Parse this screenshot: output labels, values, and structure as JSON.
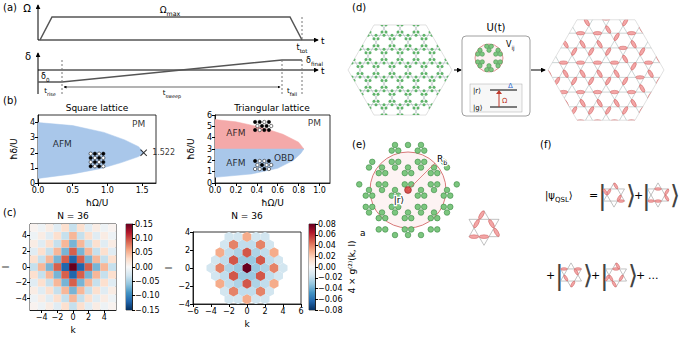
{
  "chart_data": [
    {
      "type": "phase",
      "title": "Square lattice",
      "x_label": "ħΩ/U",
      "y_label": "ħδ/U",
      "xlim": [
        0,
        1.7
      ],
      "ylim": [
        0,
        4.5
      ],
      "xticks": [
        {
          "value": 0,
          "label": "0.0"
        },
        0.5,
        {
          "value": 1,
          "label": "1.0"
        },
        1.5
      ],
      "yticks": [
        0,
        1,
        2,
        3,
        4
      ],
      "grid": false,
      "regions": [
        {
          "color": "#a9c7ea",
          "points": [
            [
              0,
              0.3
            ],
            [
              0.5,
              0.6
            ],
            [
              0.9,
              0.95
            ],
            [
              1.2,
              1.35
            ],
            [
              1.45,
              1.75
            ],
            [
              1.522,
              2.0
            ],
            [
              1.45,
              2.4
            ],
            [
              1.25,
              2.85
            ],
            [
              0.95,
              3.35
            ],
            [
              0.5,
              3.8
            ],
            [
              0,
              4.0
            ]
          ]
        }
      ],
      "labels": [
        "AFM",
        "PM"
      ],
      "series": [
        {
          "type": "scatter",
          "marker": "cross",
          "color": "#000000",
          "values": [
            [
              1.522,
              2.0
            ]
          ],
          "data_labels": true
        }
      ]
    },
    {
      "type": "phase",
      "title": "Triangular lattice",
      "x_label": "ħΩ/U",
      "y_label": "ħδ/U",
      "xlim": [
        0,
        1.1
      ],
      "ylim": [
        0,
        6
      ],
      "xticks": [
        {
          "value": 0,
          "label": "0.0"
        },
        0.2,
        0.4,
        0.6,
        0.8,
        {
          "value": 1,
          "label": "1.0"
        }
      ],
      "yticks": [
        0,
        1,
        2,
        3,
        4,
        5,
        6
      ],
      "grid": false,
      "regions": [
        {
          "color": "#f4a9a9",
          "points": [
            [
              0,
              3
            ],
            [
              0.85,
              3
            ],
            [
              0.8,
              3.6
            ],
            [
              0.65,
              4.3
            ],
            [
              0.45,
              4.9
            ],
            [
              0.2,
              5.4
            ],
            [
              0,
              5.6
            ]
          ]
        },
        {
          "color": "#a9c7ea",
          "points": [
            [
              0,
              0.5
            ],
            [
              0.35,
              0.8
            ],
            [
              0.6,
              1.3
            ],
            [
              0.75,
              2
            ],
            [
              0.82,
              2.6
            ],
            [
              0.85,
              3
            ],
            [
              0,
              3
            ]
          ]
        }
      ],
      "labels": [
        "AFM",
        "AFM",
        "PM",
        "OBD"
      ]
    },
    {
      "type": "heatmap",
      "title": "N = 36",
      "x_label": "k",
      "y_label": "l",
      "xlim": [
        -5.5,
        5.5
      ],
      "ylim": [
        -5.5,
        5.5
      ],
      "xticks": [
        {
          "value": -4,
          "label": "−4"
        },
        {
          "value": -2,
          "label": "−2"
        },
        0,
        2,
        4
      ],
      "yticks": [
        {
          "value": -4,
          "label": "−4"
        },
        {
          "value": -2,
          "label": "−2"
        },
        0,
        2,
        4
      ],
      "grid": false,
      "x": [
        -5,
        -4,
        -3,
        -2,
        -1,
        0,
        1,
        2,
        3,
        4,
        5
      ],
      "y": [
        -5,
        -4,
        -3,
        -2,
        -1,
        0,
        1,
        2,
        3,
        4,
        5
      ],
      "cells": [
        [
          0.005,
          -0.008,
          0.012,
          -0.018,
          0.025,
          -0.035,
          0.025,
          -0.018,
          0.012,
          -0.008,
          0.005
        ],
        [
          -0.008,
          0.012,
          -0.018,
          0.025,
          -0.035,
          0.05,
          -0.035,
          0.025,
          -0.018,
          0.012,
          -0.008
        ],
        [
          0.012,
          -0.018,
          0.025,
          -0.035,
          0.05,
          -0.07,
          0.05,
          -0.035,
          0.025,
          -0.018,
          0.012
        ],
        [
          -0.018,
          0.025,
          -0.035,
          0.05,
          -0.07,
          0.09,
          -0.07,
          0.05,
          -0.035,
          0.025,
          -0.018
        ],
        [
          0.025,
          -0.035,
          0.05,
          -0.07,
          0.09,
          -0.12,
          0.09,
          -0.07,
          0.05,
          -0.035,
          0.025
        ],
        [
          -0.035,
          0.05,
          -0.07,
          0.09,
          -0.12,
          0.15,
          -0.12,
          0.09,
          -0.07,
          0.05,
          -0.035
        ],
        [
          0.025,
          -0.035,
          0.05,
          -0.07,
          0.09,
          -0.12,
          0.09,
          -0.07,
          0.05,
          -0.035,
          0.025
        ],
        [
          -0.018,
          0.025,
          -0.035,
          0.05,
          -0.07,
          0.09,
          -0.07,
          0.05,
          -0.035,
          0.025,
          -0.018
        ],
        [
          0.012,
          -0.018,
          0.025,
          -0.035,
          0.05,
          -0.07,
          0.05,
          -0.035,
          0.025,
          -0.018,
          0.012
        ],
        [
          -0.008,
          0.012,
          -0.018,
          0.025,
          -0.035,
          0.05,
          -0.035,
          0.025,
          -0.018,
          0.012,
          -0.008
        ],
        [
          0.005,
          -0.008,
          0.012,
          -0.018,
          0.025,
          -0.035,
          0.025,
          -0.018,
          0.012,
          -0.008,
          0.005
        ]
      ],
      "colorbar": {
        "range": [
          -0.15,
          0.15
        ],
        "ticks": [
          {
            "value": -0.15,
            "label": "−0.15"
          },
          {
            "value": -0.1,
            "label": "−0.10"
          },
          {
            "value": -0.05,
            "label": "−0.05"
          },
          {
            "value": 0,
            "label": "0.00"
          },
          0.05,
          {
            "value": 0.1,
            "label": "0.10"
          },
          0.15
        ]
      }
    },
    {
      "type": "hexbin",
      "title": "N = 36",
      "x_label": "k",
      "y_label": "l",
      "xlim": [
        -6,
        6
      ],
      "ylim": [
        -4,
        4
      ],
      "xticks": [
        {
          "value": -6,
          "label": "−6"
        },
        {
          "value": -4,
          "label": "−4"
        },
        {
          "value": -2,
          "label": "−2"
        },
        0,
        2,
        4,
        6
      ],
      "yticks": [
        {
          "value": -4,
          "label": "−4"
        },
        {
          "value": -2,
          "label": "−2"
        },
        0,
        2,
        4
      ],
      "grid": false,
      "points": [
        [
          -2,
          -3.46,
          -0.015
        ],
        [
          -1,
          -3.46,
          -0.015
        ],
        [
          0,
          -3.46,
          0.03
        ],
        [
          1,
          -3.46,
          -0.015
        ],
        [
          2,
          -3.46,
          -0.015
        ],
        [
          -2.5,
          -2.6,
          -0.015
        ],
        [
          -1.5,
          -2.6,
          0.04
        ],
        [
          -0.5,
          -2.6,
          -0.02
        ],
        [
          0.5,
          -2.6,
          -0.02
        ],
        [
          1.5,
          -2.6,
          0.04
        ],
        [
          2.5,
          -2.6,
          -0.015
        ],
        [
          -3,
          -1.73,
          0.03
        ],
        [
          -2,
          -1.73,
          -0.02
        ],
        [
          -1,
          -1.73,
          -0.025
        ],
        [
          0,
          -1.73,
          0.05
        ],
        [
          1,
          -1.73,
          -0.025
        ],
        [
          2,
          -1.73,
          -0.02
        ],
        [
          3,
          -1.73,
          0.03
        ],
        [
          -3.5,
          -0.87,
          -0.015
        ],
        [
          -2.5,
          -0.87,
          -0.02
        ],
        [
          -1.5,
          -0.87,
          0.05
        ],
        [
          -0.5,
          -0.87,
          -0.03
        ],
        [
          0.5,
          -0.87,
          -0.03
        ],
        [
          1.5,
          -0.87,
          0.05
        ],
        [
          2.5,
          -0.87,
          -0.02
        ],
        [
          3.5,
          -0.87,
          -0.015
        ],
        [
          -4,
          0,
          -0.015
        ],
        [
          -3,
          0,
          0.04
        ],
        [
          -2,
          0,
          -0.025
        ],
        [
          -1,
          0,
          -0.03
        ],
        [
          0,
          0,
          0.08
        ],
        [
          1,
          0,
          -0.03
        ],
        [
          2,
          0,
          -0.025
        ],
        [
          3,
          0,
          0.04
        ],
        [
          4,
          0,
          -0.015
        ],
        [
          -3.5,
          0.87,
          -0.015
        ],
        [
          -2.5,
          0.87,
          -0.02
        ],
        [
          -1.5,
          0.87,
          0.05
        ],
        [
          -0.5,
          0.87,
          -0.03
        ],
        [
          0.5,
          0.87,
          -0.03
        ],
        [
          1.5,
          0.87,
          0.05
        ],
        [
          2.5,
          0.87,
          -0.02
        ],
        [
          3.5,
          0.87,
          -0.015
        ],
        [
          -3,
          1.73,
          0.03
        ],
        [
          -2,
          1.73,
          -0.02
        ],
        [
          -1,
          1.73,
          -0.025
        ],
        [
          0,
          1.73,
          0.05
        ],
        [
          1,
          1.73,
          -0.025
        ],
        [
          2,
          1.73,
          -0.02
        ],
        [
          3,
          1.73,
          0.03
        ],
        [
          -2.5,
          2.6,
          -0.015
        ],
        [
          -1.5,
          2.6,
          0.04
        ],
        [
          -0.5,
          2.6,
          -0.02
        ],
        [
          0.5,
          2.6,
          -0.02
        ],
        [
          1.5,
          2.6,
          0.04
        ],
        [
          2.5,
          2.6,
          -0.015
        ],
        [
          -2,
          3.46,
          -0.015
        ],
        [
          -1,
          3.46,
          -0.015
        ],
        [
          0,
          3.46,
          0.03
        ],
        [
          1,
          3.46,
          -0.015
        ],
        [
          2,
          3.46,
          -0.015
        ]
      ],
      "colorbar": {
        "range": [
          -0.08,
          0.08
        ],
        "label": "4 × g⁽²⁾(k, l)",
        "ticks": [
          {
            "value": -0.08,
            "label": "−0.08"
          },
          {
            "value": -0.06,
            "label": "−0.06"
          },
          {
            "value": -0.04,
            "label": "−0.04"
          },
          {
            "value": -0.02,
            "label": "−0.02"
          },
          {
            "value": 0,
            "label": "0.00"
          },
          0.02,
          0.04,
          0.06,
          0.08
        ]
      }
    }
  ],
  "diagram": {
    "panel_labels": [
      "(a)",
      "(b)",
      "(c)",
      "(d)",
      "(e)",
      "(f)"
    ],
    "a": {
      "omega_axis": "Ω",
      "time_axis": "t",
      "omega_level": {
        "base": "Ω",
        "sub": "max"
      },
      "t_tot": {
        "base": "t",
        "sub": "tot"
      },
      "delta_axis": "δ",
      "delta_start": {
        "base": "δ",
        "sub": "0"
      },
      "delta_final": {
        "base": "δ",
        "sub": "final"
      },
      "t_rise": {
        "base": "t",
        "sub": "rise"
      },
      "t_sweep": {
        "base": "t",
        "sub": "sweep"
      },
      "t_fall": {
        "base": "t",
        "sub": "fall"
      }
    },
    "d": {
      "operator": "U(t)",
      "interaction": {
        "base": "V",
        "sub": "ij"
      },
      "rydberg": "|r⟩",
      "ground": "|g⟩",
      "rabi": "Ω",
      "detuning": "Δ"
    },
    "e": {
      "blockade_radius": {
        "base": "R",
        "sub": "b"
      },
      "excited": "|r⟩",
      "spacing": "a"
    },
    "f": {
      "state": {
        "base": "|ψ",
        "sub": "QSL",
        "after": "⟩"
      },
      "equals": "=",
      "plus": "+",
      "ellipsis": "...",
      "ket_open": "|",
      "ket_close": "⟩"
    }
  }
}
